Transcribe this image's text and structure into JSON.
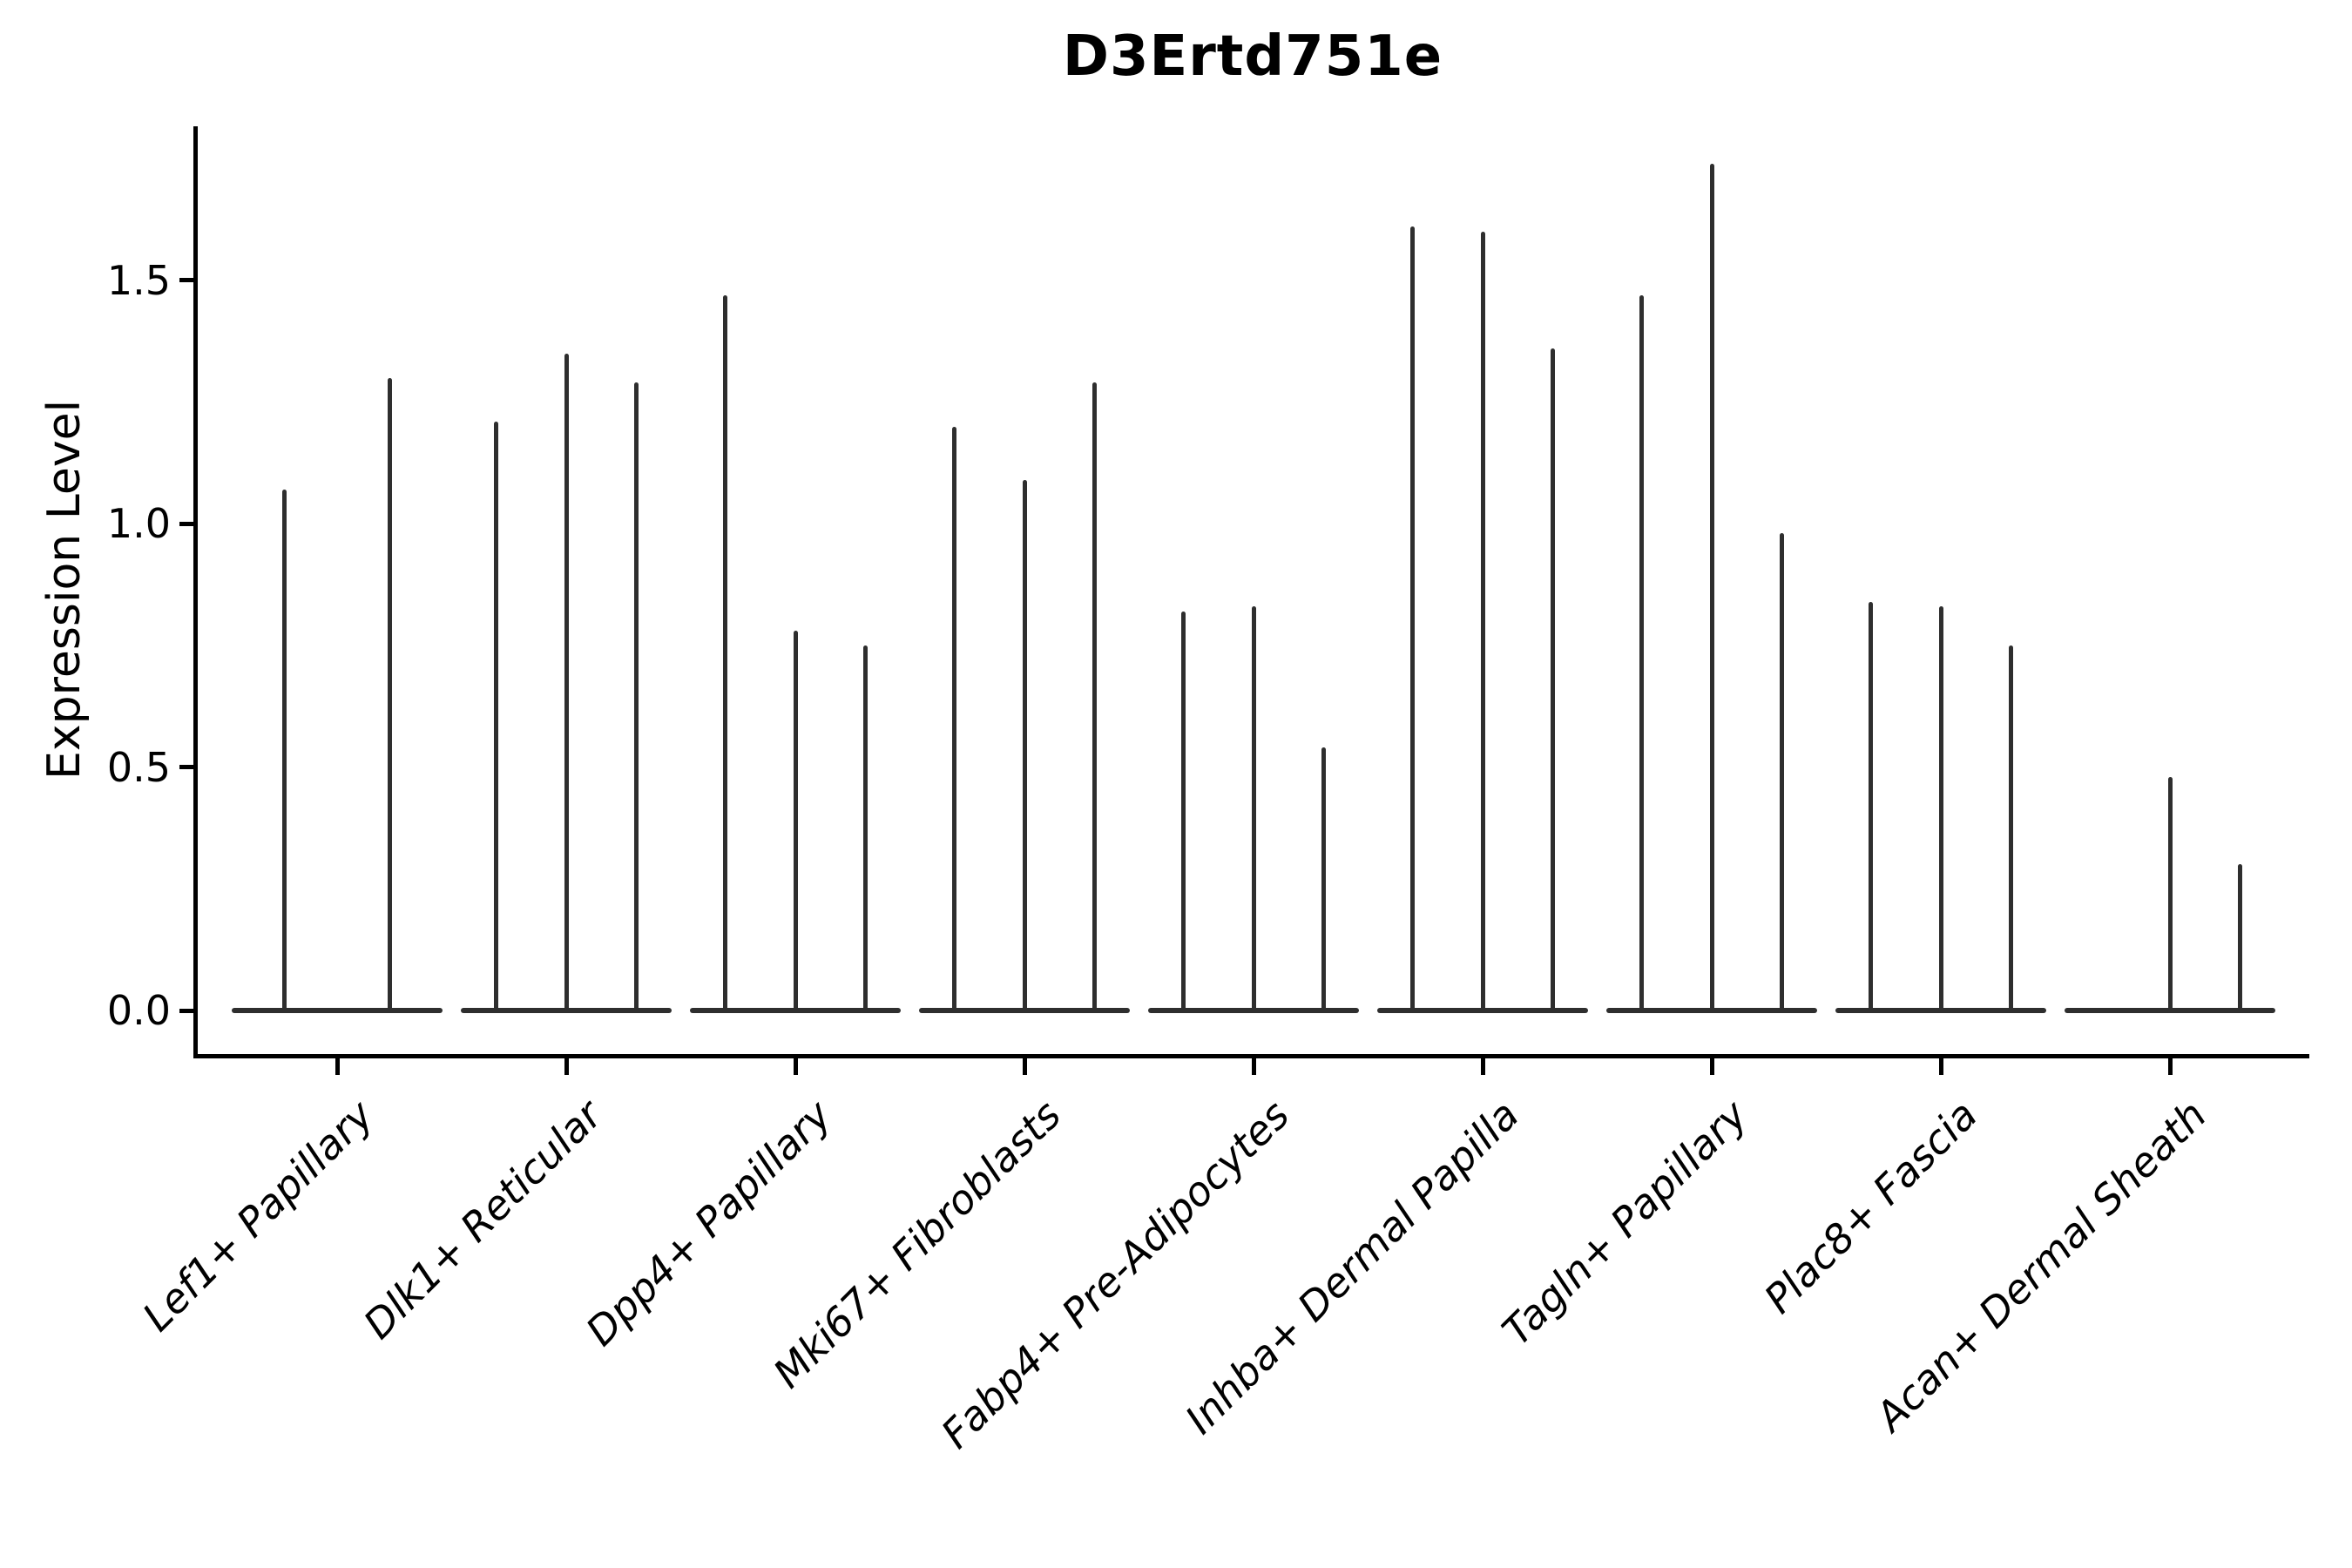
{
  "title": "D3Ertd751e",
  "colors": {
    "background": "#ffffff",
    "ink": "#000000",
    "violin": "#2e2e2e"
  },
  "chart_data": {
    "type": "violin",
    "title": "D3Ertd751e",
    "xlabel": "",
    "ylabel": "Expression Level",
    "ylim": [
      -0.09,
      1.86
    ],
    "grid": false,
    "legend": "none",
    "spines": [
      "left",
      "bottom"
    ],
    "xtick_label_rotation_deg": 45,
    "xtick_label_style": "italic",
    "yticks": {
      "values": [
        0.0,
        0.5,
        1.0,
        1.5
      ],
      "labels": [
        "0.0",
        "0.5",
        "1.0",
        "1.5"
      ]
    },
    "categories": [
      "Lef1+ Papillary",
      "Dlk1+ Reticular",
      "Dpp4+ Papillary",
      "Mki67+ Fibroblasts",
      "Fabp4+ Pre-Adipocytes",
      "Inhba+ Dermal Papilla",
      "Tagln+ Papillary",
      "Plac8+ Fascia",
      "Acan+ Dermal Sheath"
    ],
    "description": "Very thin violin distributions: dense flat body at expression 0 spanning each category group, with narrow spikes reaching each violin's maximum expression value. Each category contains 2-3 violins; a maximum of 0 means the violin is entirely flat at zero (no visible spike).",
    "groups": [
      {
        "category": "Lef1+ Papillary",
        "violin_maxima": [
          1.07,
          1.3
        ]
      },
      {
        "category": "Dlk1+ Reticular",
        "violin_maxima": [
          1.21,
          1.35,
          1.29
        ]
      },
      {
        "category": "Dpp4+ Papillary",
        "violin_maxima": [
          1.47,
          0.78,
          0.75
        ]
      },
      {
        "category": "Mki67+ Fibroblasts",
        "violin_maxima": [
          1.2,
          1.09,
          1.29
        ]
      },
      {
        "category": "Fabp4+ Pre-Adipocytes",
        "violin_maxima": [
          0.82,
          0.83,
          0.54
        ]
      },
      {
        "category": "Inhba+ Dermal Papilla",
        "violin_maxima": [
          1.61,
          1.6,
          1.36
        ]
      },
      {
        "category": "Tagln+ Papillary",
        "violin_maxima": [
          1.47,
          1.74,
          0.98
        ]
      },
      {
        "category": "Plac8+ Fascia",
        "violin_maxima": [
          0.84,
          0.83,
          0.75
        ]
      },
      {
        "category": "Acan+ Dermal Sheath",
        "violin_maxima": [
          0.0,
          0.48,
          0.3
        ]
      }
    ]
  }
}
